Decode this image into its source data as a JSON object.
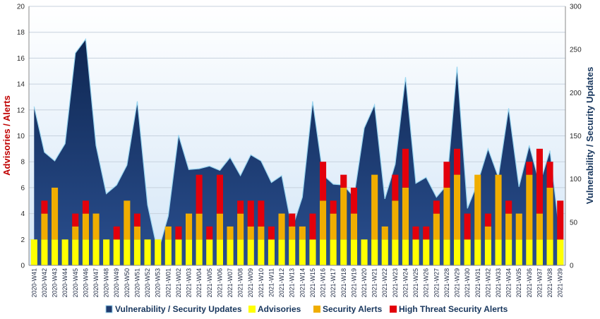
{
  "chart_data": {
    "type": "bar",
    "ylabel_left": "Advisories / Alerts",
    "ylabel_right": "Vulnerability / Security Updates",
    "ylim_left": [
      0,
      20
    ],
    "ylim_right": [
      0,
      300
    ],
    "yticks_left": [
      0,
      2,
      4,
      6,
      8,
      10,
      12,
      14,
      16,
      18,
      20
    ],
    "yticks_right": [
      0,
      50,
      100,
      150,
      200,
      250,
      300
    ],
    "grid": true,
    "legend_position": "bottom",
    "categories": [
      "2020-W41",
      "2020-W42",
      "2020-W43",
      "2020-W44",
      "2020-W45",
      "2020-W46",
      "2020-W47",
      "2020-W48",
      "2020-W49",
      "2020-W50",
      "2020-W51",
      "2020-W52",
      "2020-W53",
      "2021-W01",
      "2021-W02",
      "2021-W03",
      "2021-W04",
      "2021-W05",
      "2021-W06",
      "2021-W07",
      "2021-W08",
      "2021-W09",
      "2021-W10",
      "2021-W11",
      "2021-W12",
      "2021-W13",
      "2021-W14",
      "2021-W15",
      "2021-W16",
      "2021-W17",
      "2021-W18",
      "2021-W19",
      "2021-W20",
      "2021-W21",
      "2021-W22",
      "2021-W23",
      "2021-W24",
      "2021-W25",
      "2021-W26",
      "2021-W27",
      "2021-W28",
      "2021-W29",
      "2021-W30",
      "2021-W31",
      "2021-W32",
      "2021-W33",
      "2021-W34",
      "2021-W35",
      "2021-W36",
      "2021-W37",
      "2021-W38",
      "2021-W39"
    ],
    "series": [
      {
        "name": "Vulnerability / Security Updates",
        "axis": "right",
        "kind": "area",
        "color": "#1f3b6e",
        "values": [
          184,
          131,
          121,
          141,
          246,
          262,
          139,
          83,
          93,
          116,
          190,
          70,
          15,
          57,
          151,
          111,
          112,
          115,
          110,
          125,
          104,
          128,
          121,
          96,
          104,
          42,
          79,
          190,
          105,
          94,
          93,
          79,
          159,
          186,
          77,
          117,
          218,
          95,
          102,
          79,
          93,
          230,
          66,
          96,
          135,
          102,
          182,
          91,
          139,
          94,
          133,
          30
        ]
      },
      {
        "name": "Advisories",
        "axis": "left",
        "kind": "bar",
        "color": "#ffff00",
        "values": [
          2,
          2,
          2,
          2,
          2,
          2,
          2,
          2,
          2,
          2,
          2,
          2,
          2,
          2,
          2,
          2,
          2,
          2,
          2,
          2,
          2,
          2,
          2,
          2,
          2,
          2,
          2,
          2,
          2,
          2,
          2,
          2,
          2,
          2,
          2,
          2,
          2,
          2,
          2,
          2,
          2,
          2,
          2,
          2,
          2,
          2,
          2,
          2,
          2,
          2,
          2,
          2
        ]
      },
      {
        "name": "Security Alerts",
        "axis": "left",
        "kind": "bar",
        "color": "#f0ad00",
        "values": [
          0,
          2,
          4,
          0,
          1,
          2,
          2,
          0,
          0,
          3,
          1,
          0,
          0,
          1,
          0,
          2,
          2,
          0,
          2,
          1,
          2,
          1,
          1,
          0,
          2,
          1,
          1,
          0,
          3,
          2,
          4,
          2,
          0,
          5,
          1,
          3,
          4,
          0,
          0,
          2,
          4,
          5,
          0,
          5,
          1,
          5,
          2,
          2,
          5,
          2,
          4,
          0
        ]
      },
      {
        "name": "High Threat Security Alerts",
        "axis": "left",
        "kind": "bar",
        "color": "#e3000b",
        "values": [
          0,
          1,
          0,
          0,
          1,
          1,
          0,
          0,
          1,
          0,
          1,
          0,
          0,
          0,
          1,
          0,
          3,
          1,
          3,
          0,
          1,
          2,
          2,
          1,
          0,
          1,
          0,
          2,
          3,
          1,
          1,
          2,
          0,
          0,
          0,
          2,
          3,
          1,
          1,
          1,
          2,
          2,
          2,
          0,
          1,
          0,
          1,
          0,
          1,
          5,
          2,
          3
        ]
      }
    ]
  }
}
